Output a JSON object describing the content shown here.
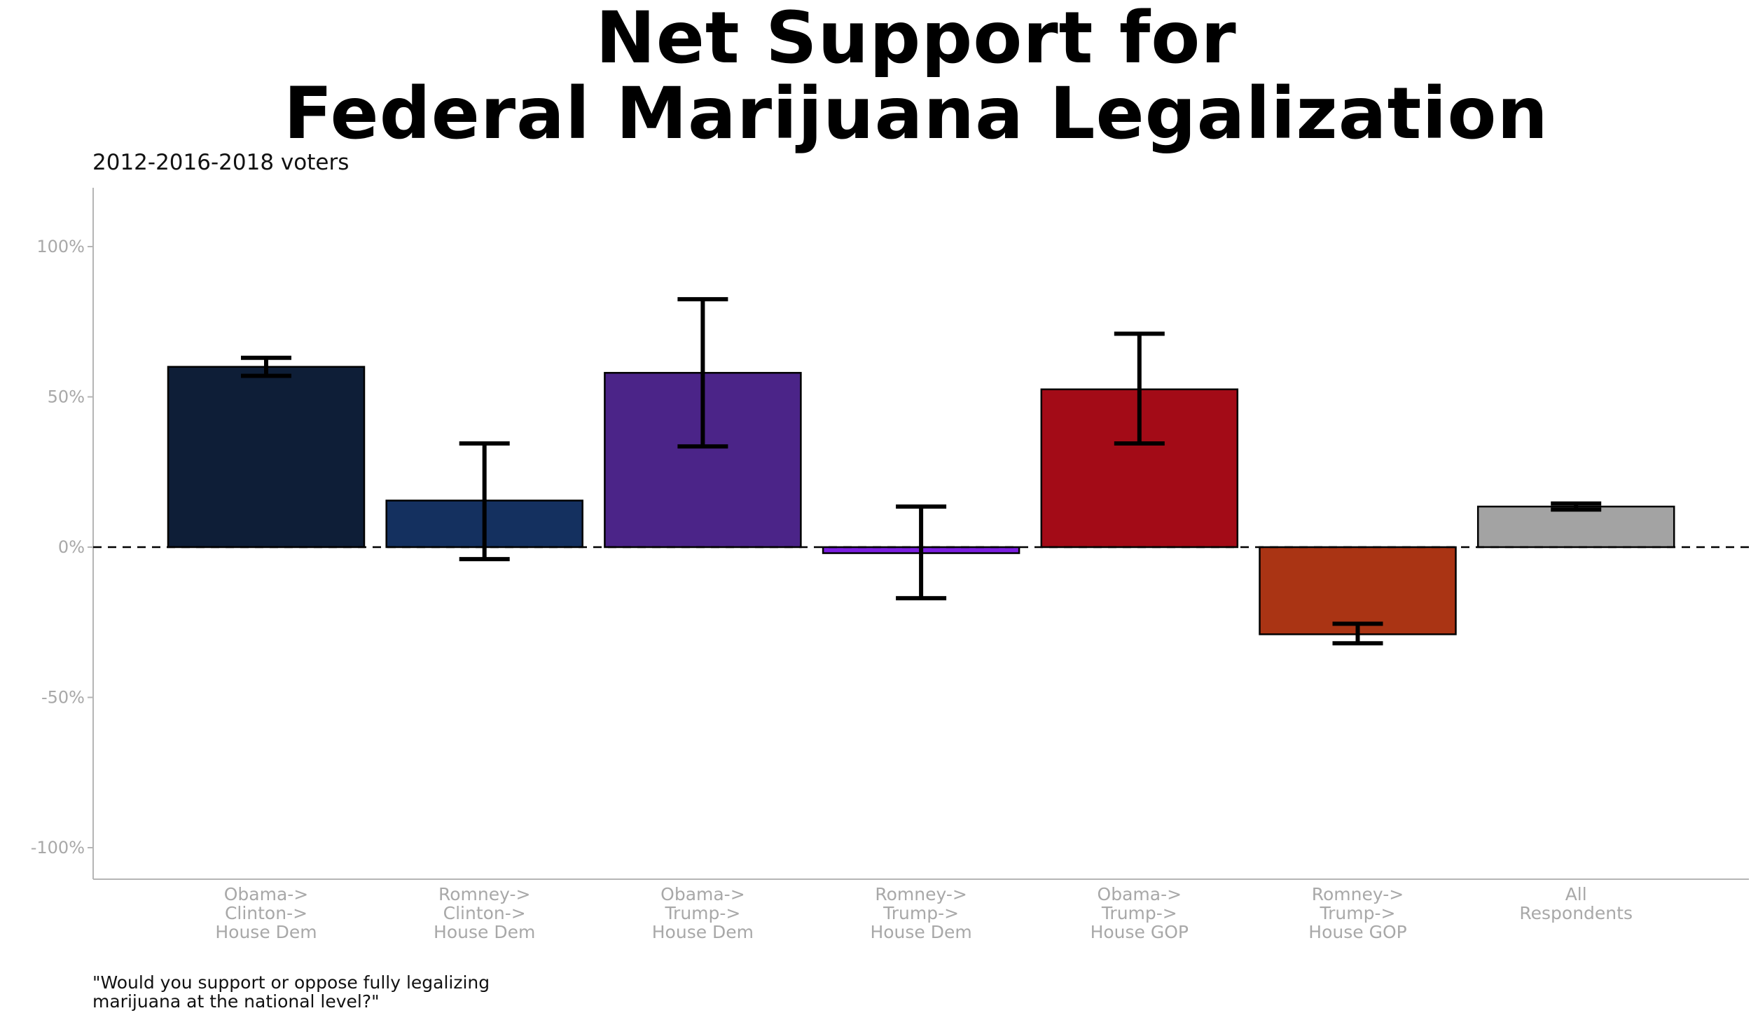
{
  "chart_data": {
    "type": "bar",
    "title_lines": [
      "Net Support for",
      "Federal Marijuana Legalization"
    ],
    "subtitle": "2012-2016-2018 voters",
    "caption_lines": [
      "\"Would you support or oppose fully legalizing",
      "marijuana at the national level?\""
    ],
    "xlabel": "",
    "ylabel": "",
    "ylim": [
      -110,
      120
    ],
    "y_ticks": [
      100,
      50,
      0,
      -50,
      -100
    ],
    "y_tick_labels": [
      "100%",
      "50%",
      "0%",
      "-50%",
      "-100%"
    ],
    "reference_line": {
      "value": 0,
      "style": "dashed"
    },
    "grid": false,
    "legend": "none",
    "categories": [
      [
        "Obama->",
        "Clinton->",
        "House Dem"
      ],
      [
        "Romney->",
        "Clinton->",
        "House Dem"
      ],
      [
        "Obama->",
        "Trump->",
        "House Dem"
      ],
      [
        "Romney->",
        "Trump->",
        "House Dem"
      ],
      [
        "Obama->",
        "Trump->",
        "House GOP"
      ],
      [
        "Romney->",
        "Trump->",
        "House GOP"
      ],
      [
        "All",
        "Respondents"
      ]
    ],
    "values": [
      60,
      15.5,
      58,
      -2,
      52.5,
      -29,
      13.5
    ],
    "error_low": [
      57,
      -4,
      33.5,
      -17,
      34.5,
      -32,
      12.5
    ],
    "error_high": [
      63,
      34.5,
      82.5,
      13.5,
      71,
      -25.5,
      14.5
    ],
    "colors": [
      "#0e1e37",
      "#14305f",
      "#4b2488",
      "#7b1fe0",
      "#a30b17",
      "#aa3414",
      "#a3a3a3"
    ]
  }
}
